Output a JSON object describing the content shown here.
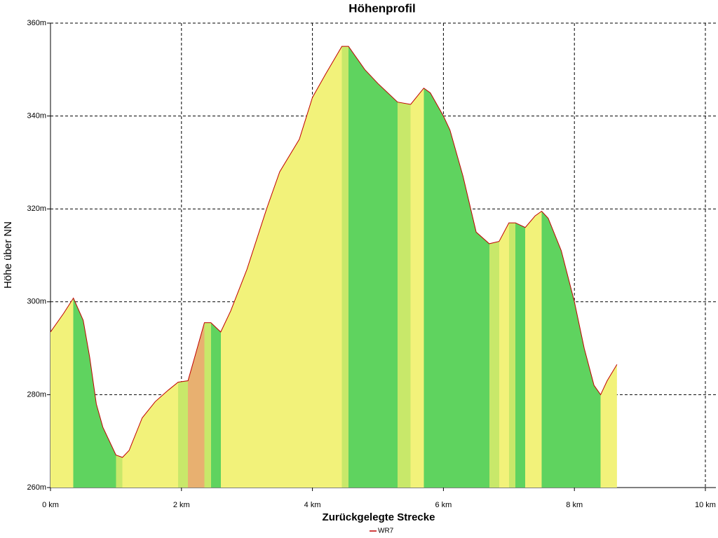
{
  "chart_data": {
    "type": "area",
    "title": "Höhenprofil",
    "x_label": "Zurückgelegte Strecke",
    "y_label": "Höhe über NN",
    "x": [
      0,
      0.2,
      0.35,
      0.5,
      0.6,
      0.7,
      0.8,
      1.0,
      1.1,
      1.2,
      1.4,
      1.6,
      1.8,
      1.95,
      2.1,
      2.2,
      2.35,
      2.45,
      2.6,
      2.75,
      3.0,
      3.3,
      3.5,
      3.8,
      4.0,
      4.2,
      4.45,
      4.55,
      4.8,
      5.0,
      5.3,
      5.5,
      5.7,
      5.8,
      6.0,
      6.1,
      6.3,
      6.5,
      6.7,
      6.85,
      7.0,
      7.1,
      7.25,
      7.4,
      7.5,
      7.6,
      7.8,
      8.0,
      8.15,
      8.3,
      8.4,
      8.5,
      8.65
    ],
    "series": [
      {
        "name": "WR7",
        "color": "#c00000",
        "values": [
          293.5,
          297.5,
          300.8,
          296,
          288,
          278,
          273,
          267,
          266.5,
          268,
          275,
          278.5,
          281,
          282.7,
          283,
          288,
          295.5,
          295.5,
          293.5,
          298,
          307,
          320,
          328,
          335,
          344,
          349,
          355,
          355,
          350,
          347,
          343,
          342.5,
          346,
          345,
          340,
          337,
          327,
          315,
          312.5,
          313,
          317,
          317,
          316,
          318.5,
          319.5,
          318,
          311,
          300,
          290,
          282,
          280,
          283,
          286.5
        ]
      }
    ],
    "xlim": [
      0,
      10
    ],
    "xticks": [
      {
        "value": 0,
        "label": "0 km"
      },
      {
        "value": 2,
        "label": "2 km"
      },
      {
        "value": 4,
        "label": "4 km"
      },
      {
        "value": 6,
        "label": "6 km"
      },
      {
        "value": 8,
        "label": "8 km"
      },
      {
        "value": 10,
        "label": "10 km"
      }
    ],
    "ylim": [
      260,
      360
    ],
    "yticks": [
      {
        "value": 260,
        "label": "260m"
      },
      {
        "value": 280,
        "label": "280m"
      },
      {
        "value": 300,
        "label": "300m"
      },
      {
        "value": 320,
        "label": "320m"
      },
      {
        "value": 340,
        "label": "340m"
      },
      {
        "value": 360,
        "label": "360m"
      }
    ],
    "grid": true
  }
}
